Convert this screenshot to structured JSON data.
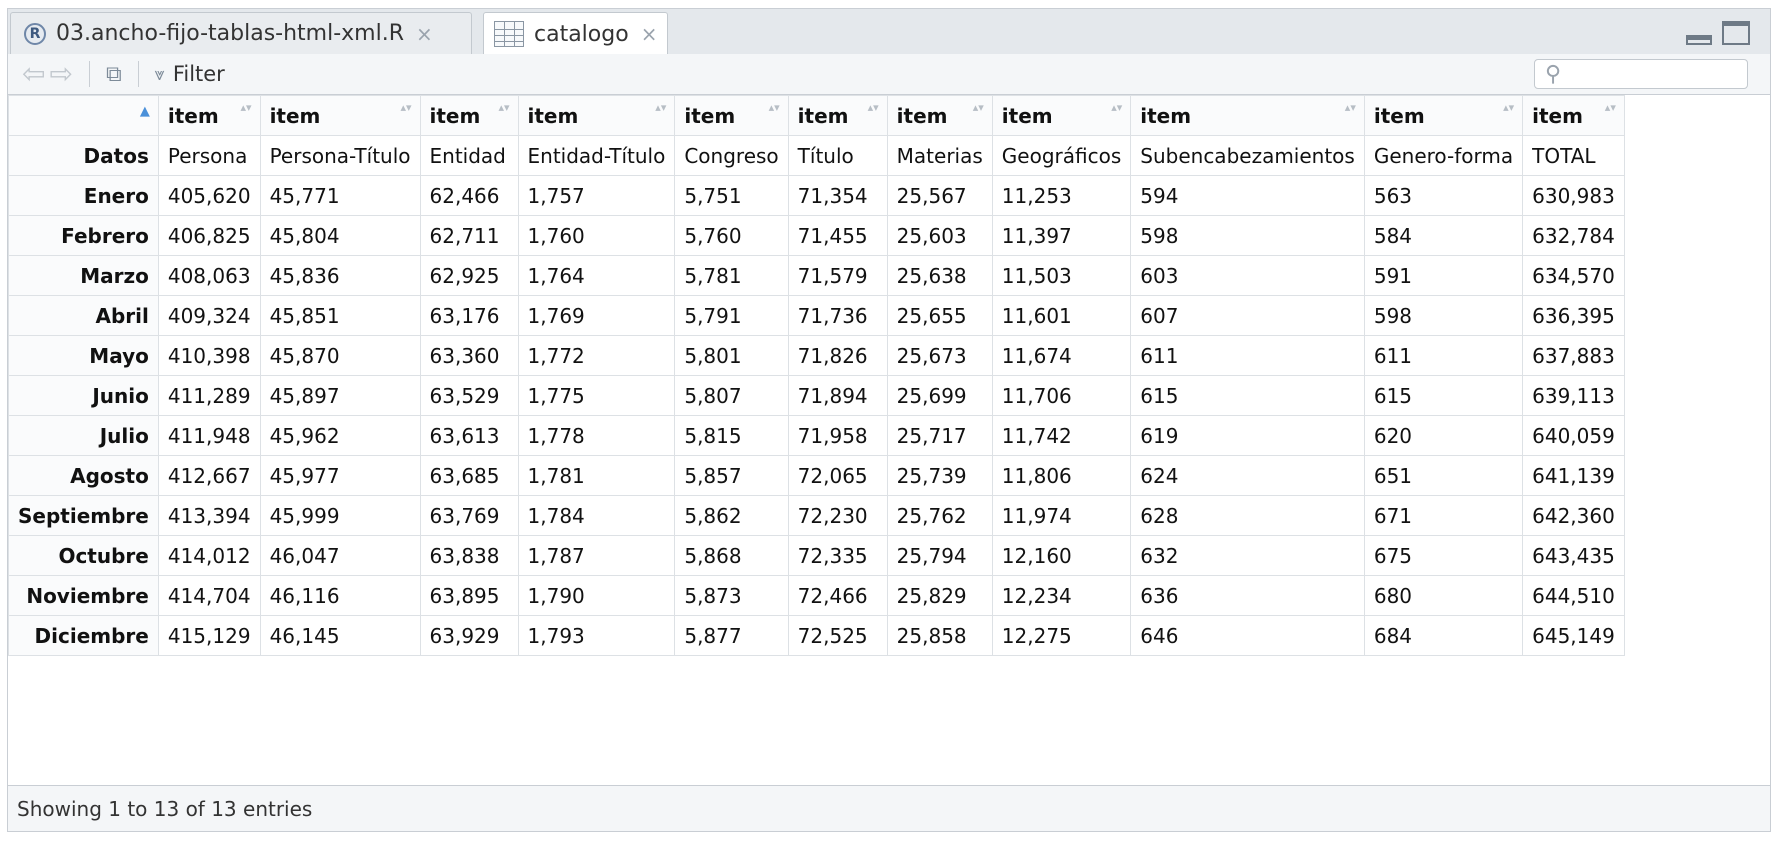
{
  "tabs": [
    {
      "label": "03.ancho-fijo-tablas-html-xml.R",
      "icon": "r-file-icon",
      "active": false
    },
    {
      "label": "catalogo",
      "icon": "table-grid-icon",
      "active": true
    }
  ],
  "r_icon_letter": "R",
  "close_glyph": "×",
  "toolbar": {
    "back_glyph": "⇦",
    "forward_glyph": "⇨",
    "popout_glyph": "⧉",
    "filter_glyph": "⩔",
    "filter_label": "Filter",
    "search_glyph": "⚲",
    "search_value": ""
  },
  "table": {
    "column_header": "item",
    "sort_glyph": "▲",
    "sort_both_glyph": "▴▾",
    "columns": [
      "Persona",
      "Persona-Título",
      "Entidad",
      "Entidad-Título",
      "Congreso",
      "Título",
      "Materias",
      "Geográficos",
      "Subencabezamientos",
      "Genero-forma",
      "TOTAL"
    ],
    "first_row_label": "Datos",
    "rows": [
      {
        "label": "Enero",
        "values": [
          "405,620",
          "45,771",
          "62,466",
          "1,757",
          "5,751",
          "71,354",
          "25,567",
          "11,253",
          "594",
          "563",
          "630,983"
        ]
      },
      {
        "label": "Febrero",
        "values": [
          "406,825",
          "45,804",
          "62,711",
          "1,760",
          "5,760",
          "71,455",
          "25,603",
          "11,397",
          "598",
          "584",
          "632,784"
        ]
      },
      {
        "label": "Marzo",
        "values": [
          "408,063",
          "45,836",
          "62,925",
          "1,764",
          "5,781",
          "71,579",
          "25,638",
          "11,503",
          "603",
          "591",
          "634,570"
        ]
      },
      {
        "label": "Abril",
        "values": [
          "409,324",
          "45,851",
          "63,176",
          "1,769",
          "5,791",
          "71,736",
          "25,655",
          "11,601",
          "607",
          "598",
          "636,395"
        ]
      },
      {
        "label": "Mayo",
        "values": [
          "410,398",
          "45,870",
          "63,360",
          "1,772",
          "5,801",
          "71,826",
          "25,673",
          "11,674",
          "611",
          "611",
          "637,883"
        ]
      },
      {
        "label": "Junio",
        "values": [
          "411,289",
          "45,897",
          "63,529",
          "1,775",
          "5,807",
          "71,894",
          "25,699",
          "11,706",
          "615",
          "615",
          "639,113"
        ]
      },
      {
        "label": "Julio",
        "values": [
          "411,948",
          "45,962",
          "63,613",
          "1,778",
          "5,815",
          "71,958",
          "25,717",
          "11,742",
          "619",
          "620",
          "640,059"
        ]
      },
      {
        "label": "Agosto",
        "values": [
          "412,667",
          "45,977",
          "63,685",
          "1,781",
          "5,857",
          "72,065",
          "25,739",
          "11,806",
          "624",
          "651",
          "641,139"
        ]
      },
      {
        "label": "Septiembre",
        "values": [
          "413,394",
          "45,999",
          "63,769",
          "1,784",
          "5,862",
          "72,230",
          "25,762",
          "11,974",
          "628",
          "671",
          "642,360"
        ]
      },
      {
        "label": "Octubre",
        "values": [
          "414,012",
          "46,047",
          "63,838",
          "1,787",
          "5,868",
          "72,335",
          "25,794",
          "12,160",
          "632",
          "675",
          "643,435"
        ]
      },
      {
        "label": "Noviembre",
        "values": [
          "414,704",
          "46,116",
          "63,895",
          "1,790",
          "5,873",
          "72,466",
          "25,829",
          "12,234",
          "636",
          "680",
          "644,510"
        ]
      },
      {
        "label": "Diciembre",
        "values": [
          "415,129",
          "46,145",
          "63,929",
          "1,793",
          "5,877",
          "72,525",
          "25,858",
          "12,275",
          "646",
          "684",
          "645,149"
        ]
      }
    ]
  },
  "footer": {
    "status": "Showing 1 to 13 of 13 entries"
  }
}
